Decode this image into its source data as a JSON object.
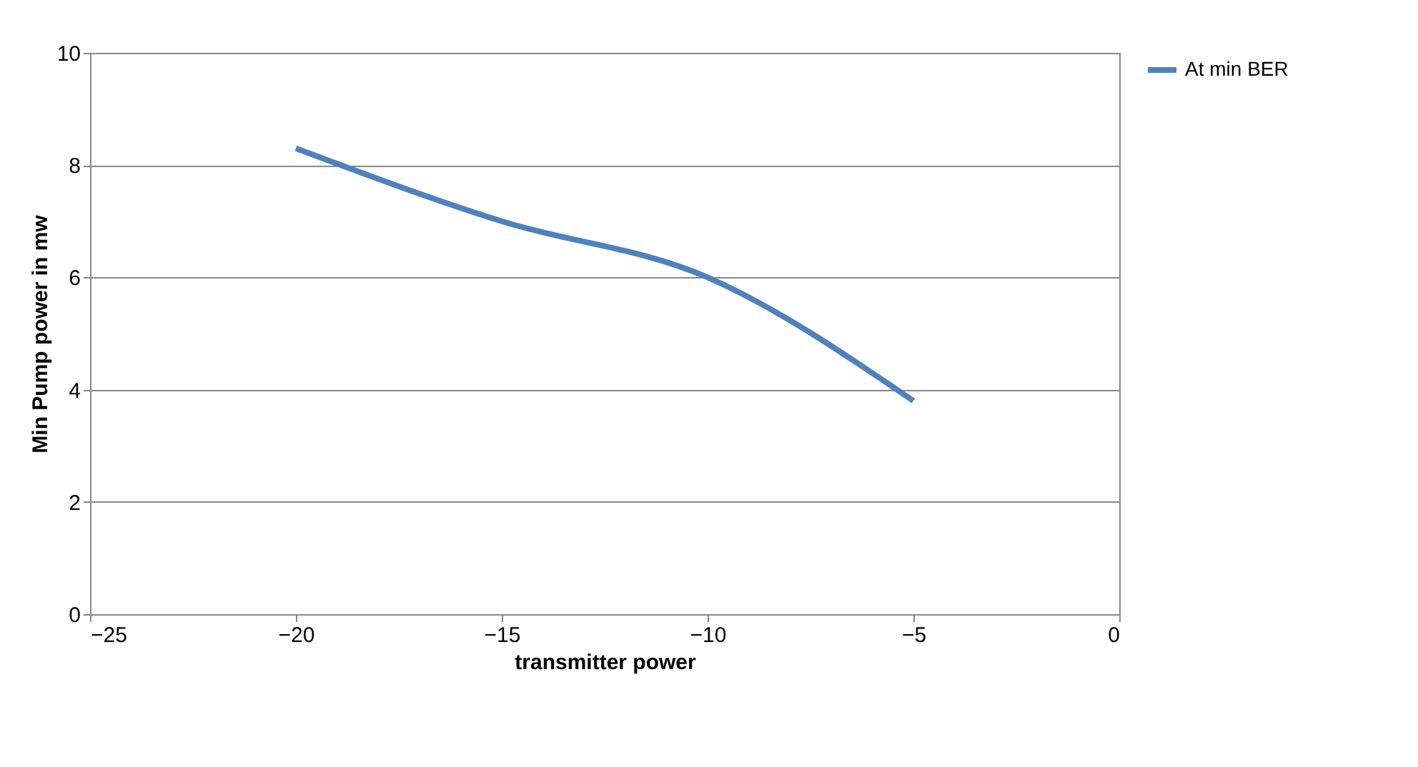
{
  "chart_data": {
    "type": "line",
    "xlabel": "transmitter power",
    "ylabel": "Min Pump power in mw",
    "x": [
      -20,
      -15,
      -10,
      -5
    ],
    "series": [
      {
        "name": "At min BER",
        "color": "#4f81bd",
        "values": [
          8.3,
          7.0,
          6.0,
          3.8
        ]
      }
    ],
    "xlim": [
      -25,
      0
    ],
    "xticks": [
      -25,
      -20,
      -15,
      -10,
      -5,
      0
    ],
    "ylim": [
      0,
      10
    ],
    "yticks": [
      0,
      2,
      4,
      6,
      8,
      10
    ],
    "grid": "y",
    "legend": "right",
    "marker": "none",
    "line_style": "solid"
  }
}
